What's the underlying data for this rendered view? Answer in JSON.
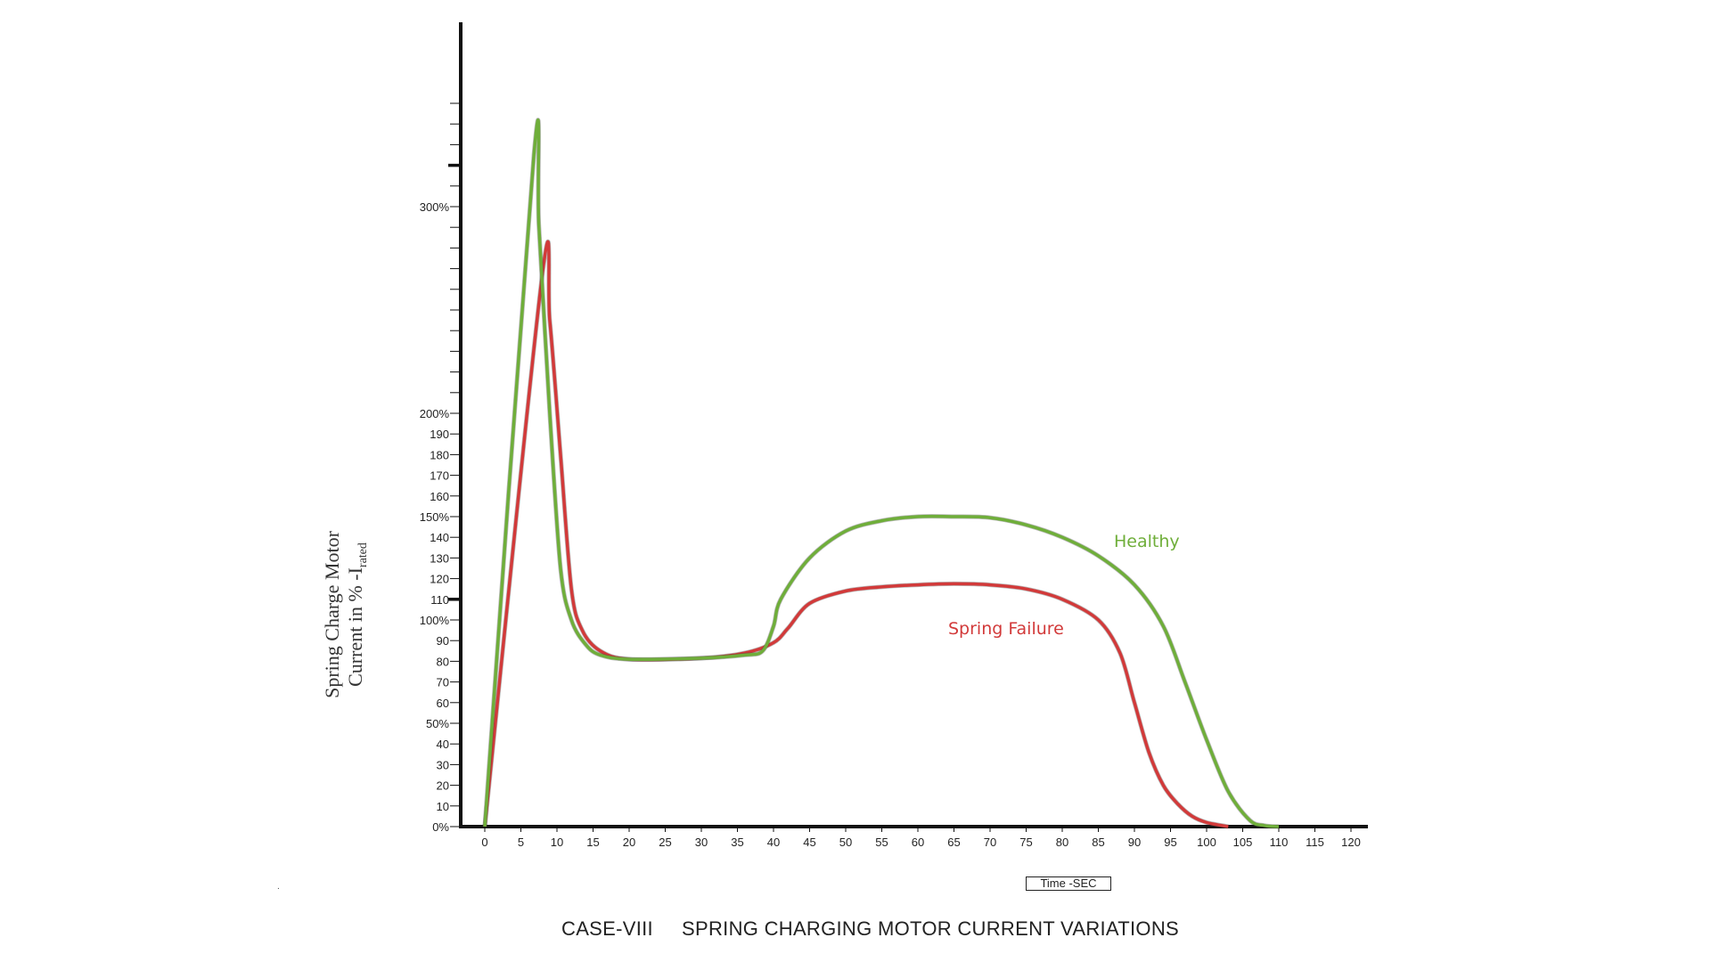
{
  "chart_data": {
    "type": "line",
    "title_case": "CASE-VIII",
    "title_text": "SPRING CHARGING MOTOR CURRENT VARIATIONS",
    "xlabel": "Time -SEC",
    "ylabel_line1": "Spring Charge Motor",
    "ylabel_line2_main": "Current in % -I",
    "ylabel_line2_sub": "rated",
    "x_ticks": [
      "0",
      "5",
      "10",
      "15",
      "20",
      "25",
      "30",
      "35",
      "40",
      "45",
      "50",
      "55",
      "60",
      "65",
      "70",
      "75",
      "80",
      "85",
      "90",
      "95",
      "100",
      "105",
      "110",
      "115",
      "120"
    ],
    "x_tick_values": [
      0,
      5,
      10,
      15,
      20,
      25,
      30,
      35,
      40,
      45,
      50,
      55,
      60,
      65,
      70,
      75,
      80,
      85,
      90,
      95,
      100,
      105,
      110,
      115,
      120
    ],
    "y_ticks": [
      {
        "v": 0,
        "label": "0%"
      },
      {
        "v": 10,
        "label": "10"
      },
      {
        "v": 20,
        "label": "20"
      },
      {
        "v": 30,
        "label": "30"
      },
      {
        "v": 40,
        "label": "40"
      },
      {
        "v": 50,
        "label": "50%"
      },
      {
        "v": 60,
        "label": "60"
      },
      {
        "v": 70,
        "label": "70"
      },
      {
        "v": 80,
        "label": "80"
      },
      {
        "v": 90,
        "label": "90"
      },
      {
        "v": 100,
        "label": "100%"
      },
      {
        "v": 110,
        "label": "110"
      },
      {
        "v": 120,
        "label": "120"
      },
      {
        "v": 130,
        "label": "130"
      },
      {
        "v": 140,
        "label": "140"
      },
      {
        "v": 150,
        "label": "150%"
      },
      {
        "v": 160,
        "label": "160"
      },
      {
        "v": 170,
        "label": "170"
      },
      {
        "v": 180,
        "label": "180"
      },
      {
        "v": 190,
        "label": "190"
      },
      {
        "v": 200,
        "label": "200%"
      },
      {
        "v": 300,
        "label": "300%"
      }
    ],
    "xlim": [
      -3,
      122
    ],
    "ylim": [
      0,
      390
    ],
    "series": [
      {
        "name": "Healthy",
        "color": "#6fae3a",
        "points": [
          [
            0,
            0
          ],
          [
            6.8,
            325
          ],
          [
            7.5,
            290
          ],
          [
            9,
            200
          ],
          [
            10.5,
            125
          ],
          [
            12,
            100
          ],
          [
            14,
            88
          ],
          [
            16,
            83
          ],
          [
            20,
            81
          ],
          [
            30,
            81.5
          ],
          [
            36,
            83
          ],
          [
            38.5,
            85
          ],
          [
            40,
            97
          ],
          [
            41,
            110
          ],
          [
            45,
            130
          ],
          [
            50,
            143
          ],
          [
            55,
            148
          ],
          [
            60,
            150
          ],
          [
            65,
            150
          ],
          [
            70,
            149.5
          ],
          [
            75,
            146
          ],
          [
            80,
            140
          ],
          [
            85,
            131
          ],
          [
            90,
            117
          ],
          [
            94,
            97
          ],
          [
            97,
            70
          ],
          [
            100,
            42
          ],
          [
            103,
            17
          ],
          [
            106,
            3
          ],
          [
            108,
            0.5
          ],
          [
            110,
            0
          ]
        ]
      },
      {
        "name": "Spring Failure",
        "color": "#d23a3a",
        "points": [
          [
            0,
            0
          ],
          [
            8,
            268
          ],
          [
            9,
            245
          ],
          [
            10.5,
            180
          ],
          [
            12,
            115
          ],
          [
            13.5,
            95
          ],
          [
            16,
            85
          ],
          [
            20,
            81
          ],
          [
            30,
            81.5
          ],
          [
            36,
            84
          ],
          [
            40,
            89
          ],
          [
            42,
            96
          ],
          [
            45,
            108
          ],
          [
            50,
            114
          ],
          [
            55,
            116
          ],
          [
            60,
            117
          ],
          [
            65,
            117.5
          ],
          [
            70,
            117
          ],
          [
            75,
            115
          ],
          [
            80,
            110
          ],
          [
            85,
            100
          ],
          [
            88,
            84
          ],
          [
            90,
            60
          ],
          [
            92,
            36
          ],
          [
            94,
            20
          ],
          [
            96,
            11
          ],
          [
            98,
            5
          ],
          [
            100,
            2
          ],
          [
            103,
            0
          ]
        ]
      }
    ],
    "grid": false,
    "legend": "inline labels"
  }
}
